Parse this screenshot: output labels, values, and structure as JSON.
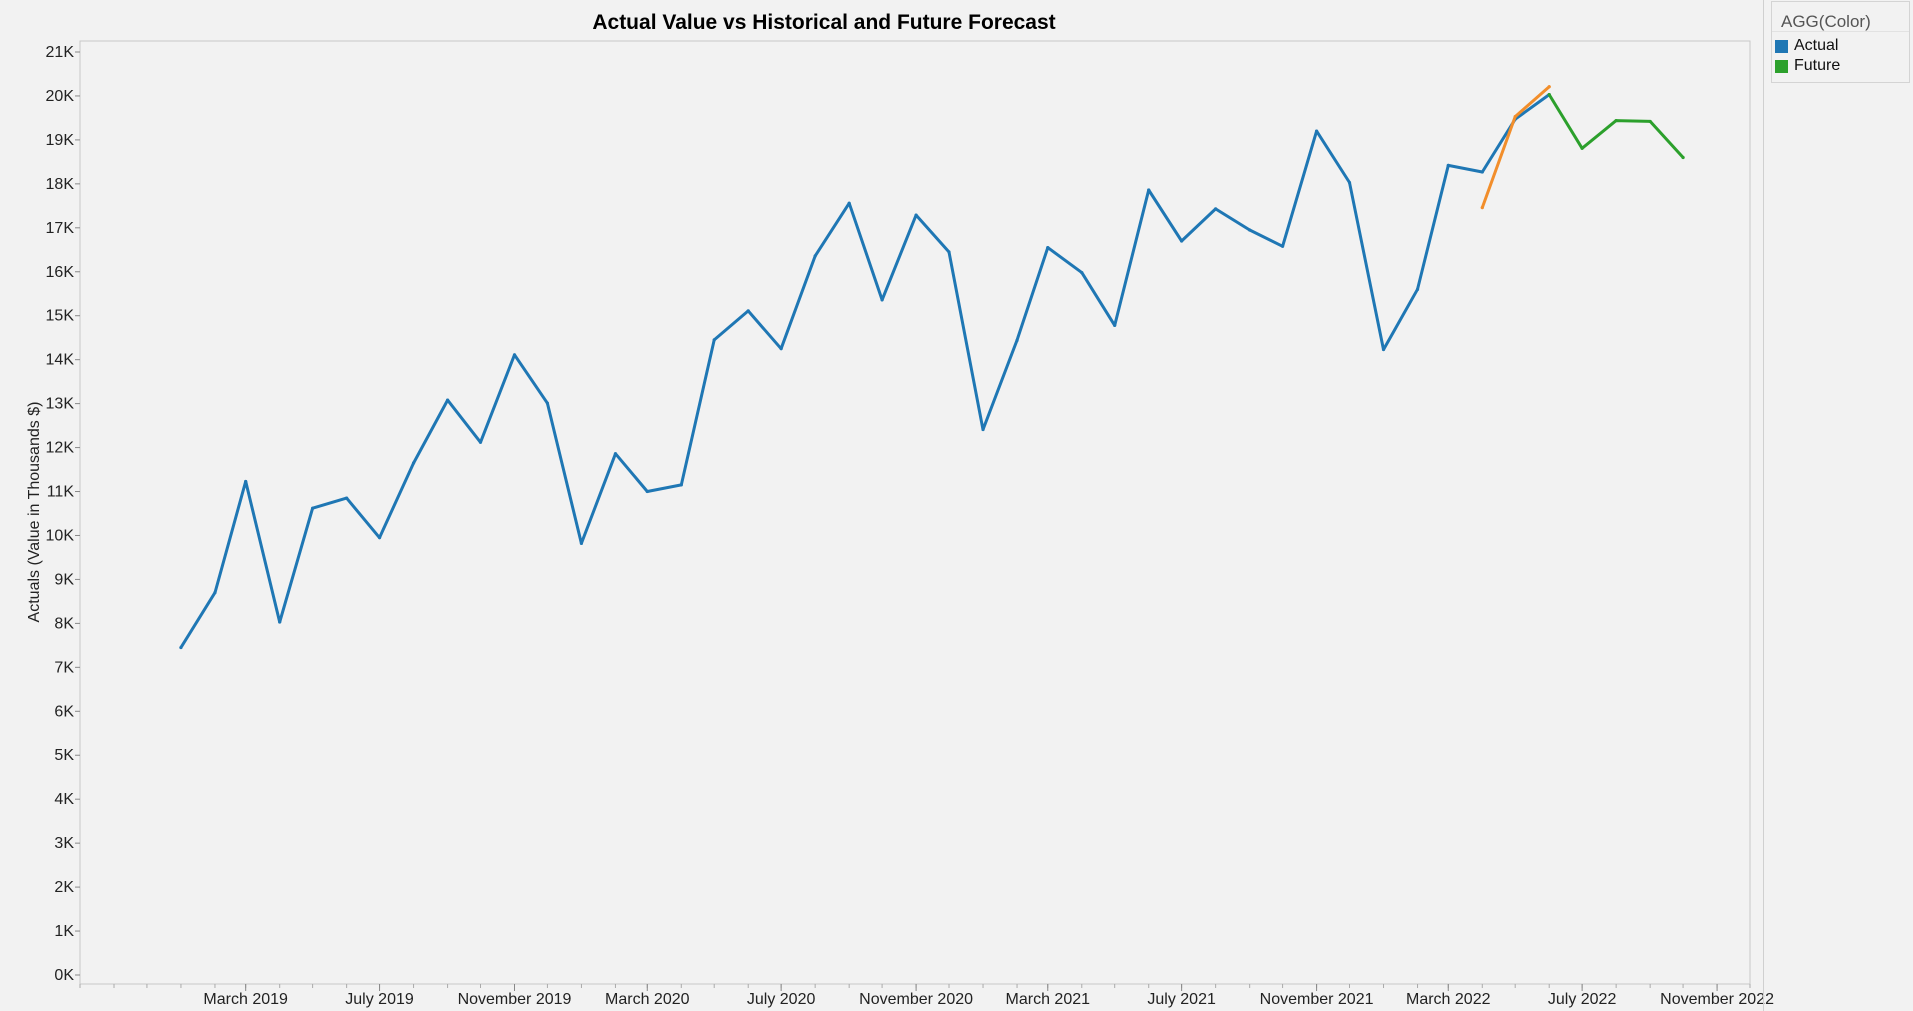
{
  "chart_data": {
    "type": "line",
    "title": "Actual Value vs Historical and Future Forecast",
    "xlabel": "",
    "ylabel": "Actuals (Value in Thousands $)",
    "ylim": [
      0,
      21000
    ],
    "yticks": [
      0,
      1000,
      2000,
      3000,
      4000,
      5000,
      6000,
      7000,
      8000,
      9000,
      10000,
      11000,
      12000,
      13000,
      14000,
      15000,
      16000,
      17000,
      18000,
      19000,
      20000,
      21000
    ],
    "ytick_labels": [
      "0K",
      "1K",
      "2K",
      "3K",
      "4K",
      "5K",
      "6K",
      "7K",
      "8K",
      "9K",
      "10K",
      "11K",
      "12K",
      "13K",
      "14K",
      "15K",
      "16K",
      "17K",
      "18K",
      "19K",
      "20K",
      "21K"
    ],
    "xlim": [
      "2018-10-01",
      "2022-12-01"
    ],
    "xticks": [
      "2019-03-01",
      "2019-07-01",
      "2019-11-01",
      "2020-03-01",
      "2020-07-01",
      "2020-11-01",
      "2021-03-01",
      "2021-07-01",
      "2021-11-01",
      "2022-03-01",
      "2022-07-01",
      "2022-11-01"
    ],
    "xtick_labels": [
      "March 2019",
      "July 2019",
      "November 2019",
      "March 2020",
      "July 2020",
      "November 2020",
      "March 2021",
      "July 2021",
      "November 2021",
      "March 2022",
      "July 2022",
      "November 2022"
    ],
    "grid": false,
    "legend": {
      "title": "AGG(Color)",
      "position": "top-right",
      "items": [
        {
          "label": "Actual",
          "color": "#1f77b4"
        },
        {
          "label": "Future",
          "color": "#2ca02c"
        }
      ]
    },
    "series": [
      {
        "name": "Actual",
        "color": "#1f77b4",
        "x": [
          "2019-01-01",
          "2019-02-01",
          "2019-03-01",
          "2019-04-01",
          "2019-05-01",
          "2019-06-01",
          "2019-07-01",
          "2019-08-01",
          "2019-09-01",
          "2019-10-01",
          "2019-11-01",
          "2019-12-01",
          "2020-01-01",
          "2020-02-01",
          "2020-03-01",
          "2020-04-01",
          "2020-05-01",
          "2020-06-01",
          "2020-07-01",
          "2020-08-01",
          "2020-09-01",
          "2020-10-01",
          "2020-11-01",
          "2020-12-01",
          "2021-01-01",
          "2021-02-01",
          "2021-03-01",
          "2021-04-01",
          "2021-05-01",
          "2021-06-01",
          "2021-07-01",
          "2021-08-01",
          "2021-09-01",
          "2021-10-01",
          "2021-11-01",
          "2021-12-01",
          "2022-01-01",
          "2022-02-01",
          "2022-03-01",
          "2022-04-01",
          "2022-05-01",
          "2022-06-01"
        ],
        "values": [
          7450,
          8700,
          11230,
          8030,
          10620,
          10850,
          9950,
          11650,
          13080,
          12120,
          14110,
          13010,
          9820,
          11860,
          11000,
          11150,
          14450,
          15110,
          14250,
          16360,
          17560,
          15360,
          17290,
          16450,
          12410,
          14440,
          16550,
          15980,
          14780,
          17860,
          16700,
          17430,
          16950,
          16580,
          19200,
          18030,
          14230,
          15600,
          18420,
          18270,
          19470,
          20030
        ]
      },
      {
        "name": "",
        "color": "#f28e2b",
        "x": [
          "2022-04-01",
          "2022-05-01",
          "2022-06-01"
        ],
        "values": [
          17460,
          19530,
          20210
        ]
      },
      {
        "name": "Future",
        "color": "#2ca02c",
        "x": [
          "2022-06-01",
          "2022-07-01",
          "2022-08-01",
          "2022-09-01",
          "2022-10-01"
        ],
        "values": [
          20030,
          18810,
          19440,
          19420,
          18600
        ]
      }
    ]
  }
}
